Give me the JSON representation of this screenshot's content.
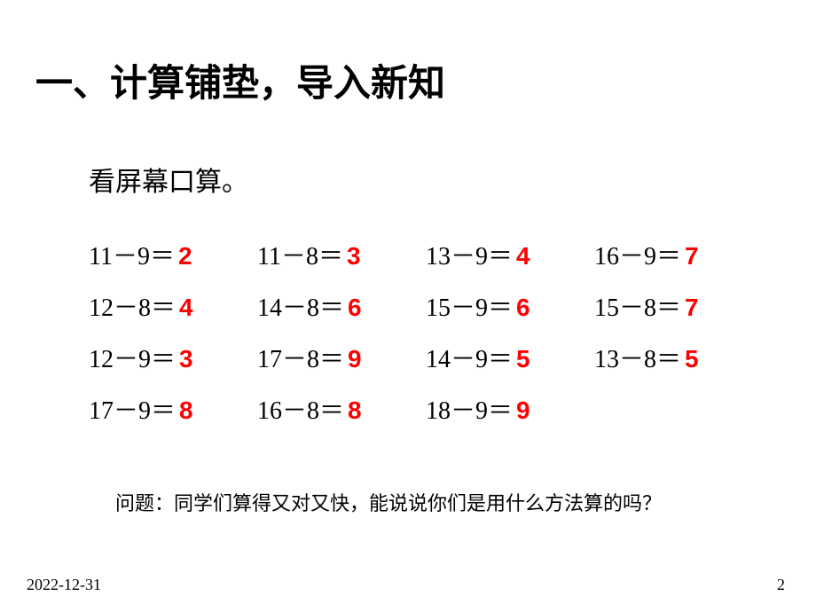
{
  "title": "一、计算铺垫，导入新知",
  "subtitle": "看屏幕口算。",
  "answer_color": "#ff0000",
  "text_color": "#000000",
  "background_color": "#ffffff",
  "title_fontsize": 42,
  "subtitle_fontsize": 30,
  "cell_fontsize": 28,
  "question_fontsize": 22,
  "footer_fontsize": 18,
  "rows": [
    [
      {
        "expr": "11－9＝",
        "ans": "2"
      },
      {
        "expr": "11－8＝",
        "ans": "3"
      },
      {
        "expr": "13－9＝",
        "ans": "4"
      },
      {
        "expr": "16－9＝",
        "ans": "7"
      }
    ],
    [
      {
        "expr": "12－8＝",
        "ans": "4"
      },
      {
        "expr": "14－8＝",
        "ans": "6"
      },
      {
        "expr": "15－9＝",
        "ans": "6"
      },
      {
        "expr": "15－8＝",
        "ans": "7"
      }
    ],
    [
      {
        "expr": "12－9＝",
        "ans": "3"
      },
      {
        "expr": "17－8＝",
        "ans": "9"
      },
      {
        "expr": "14－9＝",
        "ans": "5"
      },
      {
        "expr": "13－8＝",
        "ans": "5"
      }
    ],
    [
      {
        "expr": "17－9＝",
        "ans": "8"
      },
      {
        "expr": "16－8＝",
        "ans": "8"
      },
      {
        "expr": "18－9＝",
        "ans": "9"
      }
    ]
  ],
  "question": "问题：同学们算得又对又快，能说说你们是用什么方法算的吗？",
  "date": "2022-12-31",
  "page_number": "2"
}
